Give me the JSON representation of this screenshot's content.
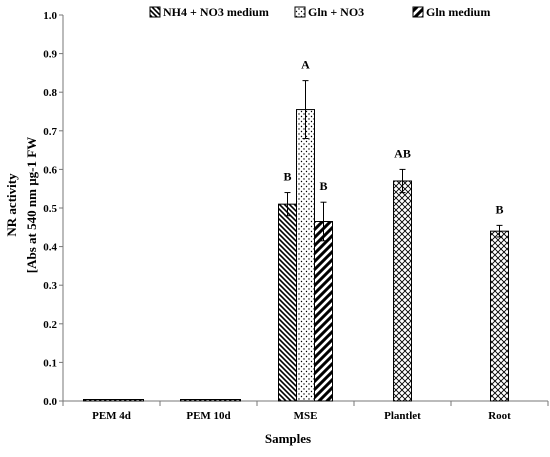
{
  "chart_data": {
    "type": "bar",
    "xlabel": "Samples",
    "ylabel_line1": "NR activity",
    "ylabel_line2": "[Abs at 540 nm µg-1 FW",
    "ylim": [
      0,
      1.0
    ],
    "yticks": [
      "0.0",
      "0.1",
      "0.2",
      "0.3",
      "0.4",
      "0.5",
      "0.6",
      "0.7",
      "0.8",
      "0.9",
      "1.0"
    ],
    "categories": [
      "PEM 4d",
      "PEM 10d",
      "MSE",
      "Plantlet",
      "Root"
    ],
    "series_names": [
      "NH4 + NO3 medium",
      "Gln + NO3",
      "Gln medium"
    ],
    "pattern_names": [
      "diagonal-stripes",
      "dots",
      "diagonal-thick-stripes",
      "diamond-crosshatch"
    ],
    "bars": [
      {
        "category": "PEM 4d",
        "series": "NH4 + NO3 medium",
        "pattern": "diagonal-stripes",
        "value": 0.003,
        "error": 0,
        "letter": ""
      },
      {
        "category": "PEM 10d",
        "series": "NH4 + NO3 medium",
        "pattern": "diagonal-stripes",
        "value": 0.003,
        "error": 0,
        "letter": ""
      },
      {
        "category": "MSE",
        "series": "NH4 + NO3 medium",
        "pattern": "diagonal-stripes",
        "value": 0.51,
        "error": 0.03,
        "letter": "B"
      },
      {
        "category": "MSE",
        "series": "Gln + NO3",
        "pattern": "dots",
        "value": 0.755,
        "error": 0.075,
        "letter": "A"
      },
      {
        "category": "MSE",
        "series": "Gln medium",
        "pattern": "diagonal-thick-stripes",
        "value": 0.465,
        "error": 0.05,
        "letter": "B"
      },
      {
        "category": "Plantlet",
        "series": "",
        "pattern": "diamond-crosshatch",
        "value": 0.57,
        "error": 0.03,
        "letter": "AB"
      },
      {
        "category": "Root",
        "series": "",
        "pattern": "diamond-crosshatch",
        "value": 0.44,
        "error": 0.015,
        "letter": "B"
      }
    ],
    "legend_position": "top",
    "grid": false
  }
}
